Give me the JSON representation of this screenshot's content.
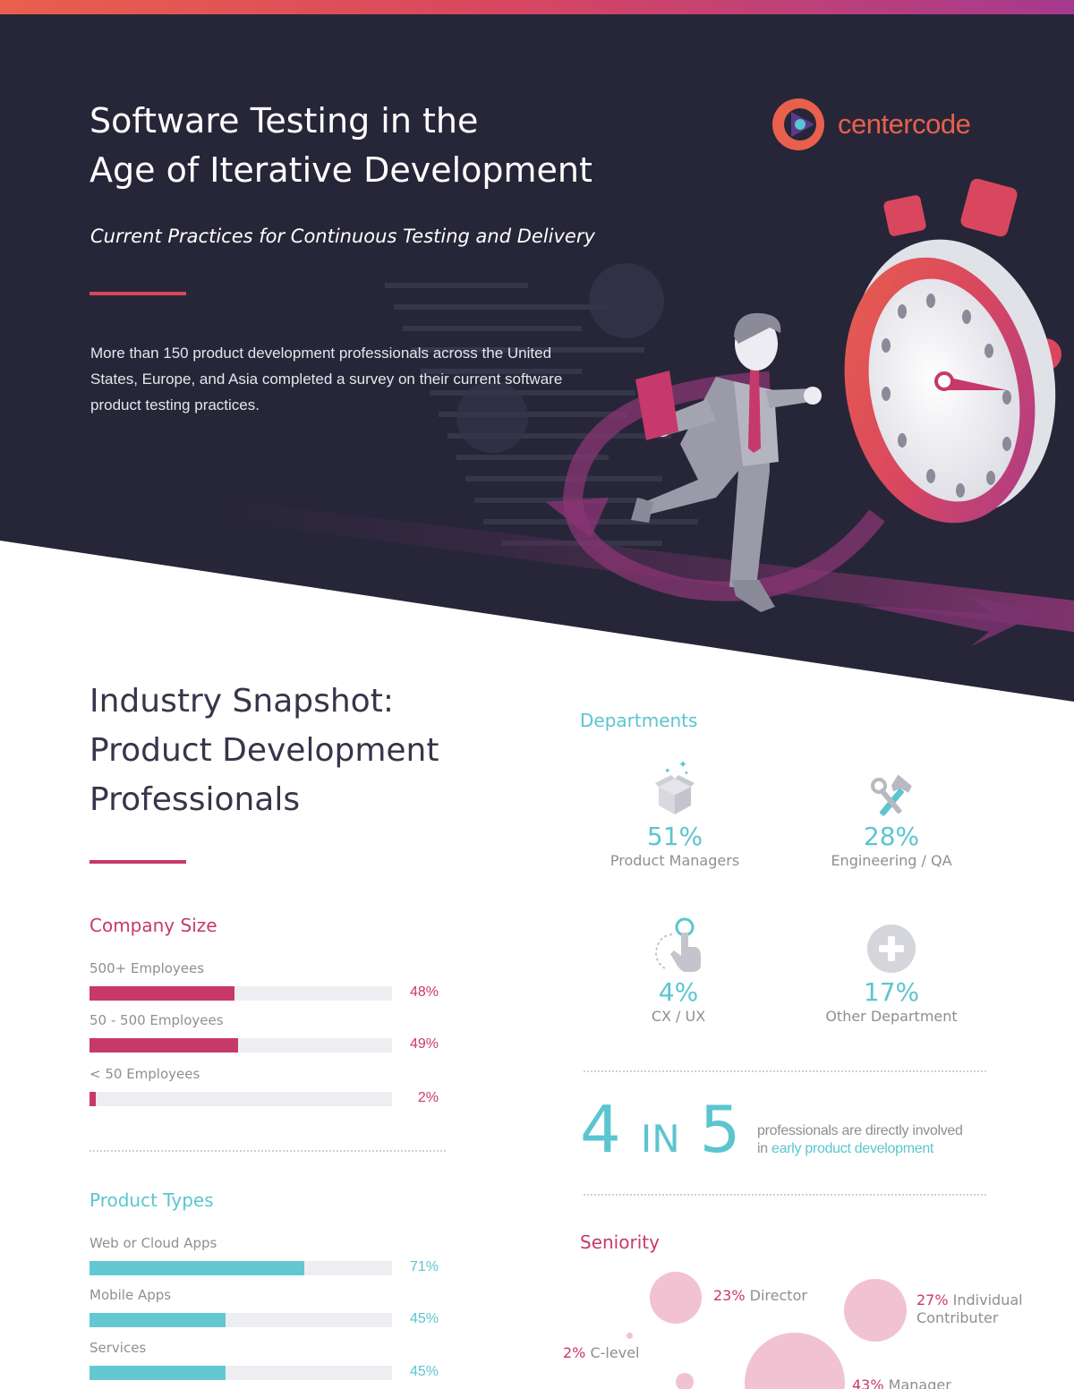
{
  "brand": {
    "name": "centercode",
    "accent": "#e8604c",
    "dark_bg": "#262638",
    "pink": "#c7396a",
    "teal": "#5bc5d0"
  },
  "hero": {
    "title_line1": "Software Testing in the",
    "title_line2": "Age of Iterative Development",
    "subtitle": "Current Practices for Continuous Testing and Delivery",
    "intro_line1": "More than 150 product development professionals across the United",
    "intro_line2": "States, Europe, and Asia completed a survey on their current software",
    "intro_line3": "product testing practices."
  },
  "snapshot": {
    "title_line1": "Industry Snapshot:",
    "title_line2": "Product Development",
    "title_line3": "Professionals"
  },
  "company_size": {
    "heading": "Company Size",
    "items": [
      {
        "label": "500+ Employees",
        "pct": "48%",
        "value": 0.48
      },
      {
        "label": "50 - 500 Employees",
        "pct": "49%",
        "value": 0.49
      },
      {
        "label": "< 50 Employees",
        "pct": "2%",
        "value": 0.02
      }
    ]
  },
  "product_types": {
    "heading": "Product Types",
    "items": [
      {
        "label": "Web or Cloud Apps",
        "pct": "71%",
        "value": 0.71
      },
      {
        "label": "Mobile Apps",
        "pct": "45%",
        "value": 0.45
      },
      {
        "label": "Services",
        "pct": "45%",
        "value": 0.45
      }
    ]
  },
  "departments": {
    "heading": "Departments",
    "items": [
      {
        "pct": "51%",
        "label": "Product Managers",
        "icon": "box-sparkle-icon"
      },
      {
        "pct": "28%",
        "label": "Engineering / QA",
        "icon": "tools-icon"
      },
      {
        "pct": "4%",
        "label": "CX / UX",
        "icon": "touch-hand-icon"
      },
      {
        "pct": "17%",
        "label": "Other Department",
        "icon": "plus-circle-icon"
      }
    ]
  },
  "involvement": {
    "num_a": "4",
    "in_word": "IN",
    "num_b": "5",
    "text_line1": "professionals are directly involved",
    "text_prefix": "in",
    "text_highlight": "early product development"
  },
  "seniority": {
    "heading": "Seniority",
    "items": [
      {
        "pct": "23%",
        "label": "Director"
      },
      {
        "pct": "27%",
        "label": "Individual",
        "label2": "Contributer"
      },
      {
        "pct": "2%",
        "label": "C-level"
      },
      {
        "pct": "43%",
        "label": "Manager"
      }
    ]
  }
}
